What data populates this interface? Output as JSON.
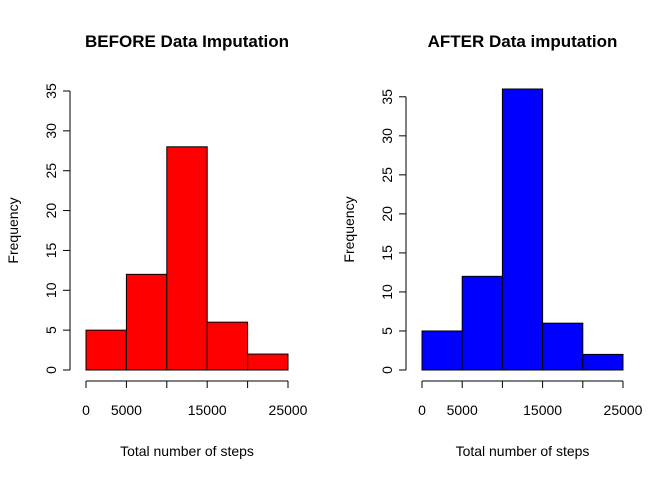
{
  "chart_data": [
    {
      "type": "bar",
      "title": "BEFORE Data Imputation",
      "xlabel": "Total number of steps",
      "ylabel": "Frequency",
      "bins": [
        [
          0,
          5000
        ],
        [
          5000,
          10000
        ],
        [
          10000,
          15000
        ],
        [
          15000,
          20000
        ],
        [
          20000,
          25000
        ]
      ],
      "values": [
        5,
        12,
        28,
        6,
        2
      ],
      "xlim": [
        0,
        25000
      ],
      "ylim": [
        0,
        35
      ],
      "xticks": [
        0,
        5000,
        10000,
        15000,
        20000,
        25000
      ],
      "xtick_labels": [
        "0",
        "5000",
        "",
        "15000",
        "",
        "25000"
      ],
      "yticks": [
        0,
        5,
        10,
        15,
        20,
        25,
        30,
        35
      ],
      "ytick_labels": [
        "0",
        "5",
        "10",
        "15",
        "20",
        "25",
        "30",
        "35"
      ],
      "bar_color": "#ff0000",
      "grid": false
    },
    {
      "type": "bar",
      "title": "AFTER Data imputation",
      "xlabel": "Total number of steps",
      "ylabel": "Frequency",
      "bins": [
        [
          0,
          5000
        ],
        [
          5000,
          10000
        ],
        [
          10000,
          15000
        ],
        [
          15000,
          20000
        ],
        [
          20000,
          25000
        ]
      ],
      "values": [
        5,
        12,
        36,
        6,
        2
      ],
      "xlim": [
        0,
        25000
      ],
      "ylim": [
        0,
        36
      ],
      "xticks": [
        0,
        5000,
        10000,
        15000,
        20000,
        25000
      ],
      "xtick_labels": [
        "0",
        "5000",
        "",
        "15000",
        "",
        "25000"
      ],
      "yticks": [
        0,
        5,
        10,
        15,
        20,
        25,
        30,
        35
      ],
      "ytick_labels": [
        "0",
        "5",
        "10",
        "15",
        "20",
        "25",
        "30",
        "35"
      ],
      "bar_color": "#0000ff",
      "grid": false
    }
  ]
}
